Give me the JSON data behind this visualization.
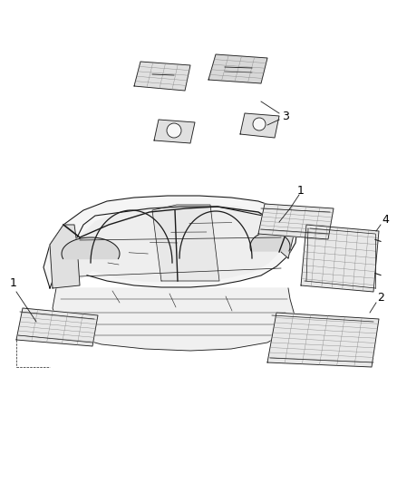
{
  "bg_color": "#ffffff",
  "fig_width": 4.38,
  "fig_height": 5.33,
  "dpi": 100,
  "lc": "#1a1a1a",
  "lw": 0.6,
  "fill_light": "#f0f0f0",
  "fill_mid": "#e0e0e0",
  "fill_dark": "#c8c8c8"
}
